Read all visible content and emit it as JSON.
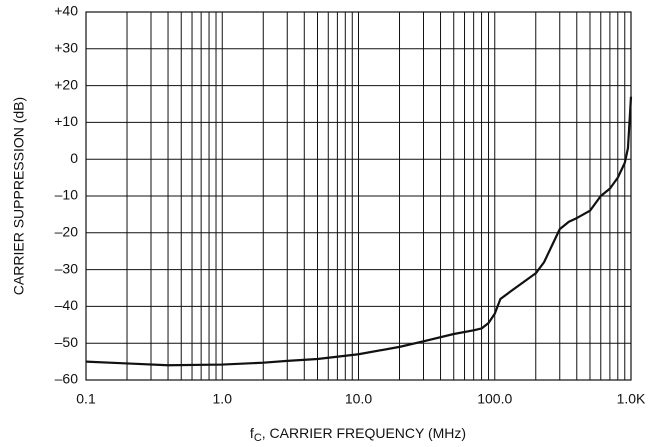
{
  "chart_data": {
    "type": "line",
    "ylabel": "CARRIER SUPPRESSION (dB)",
    "xlabel_parts": [
      "f",
      "C",
      ", CARRIER FREQUENCY (MHz)"
    ],
    "x": [
      0.1,
      0.2,
      0.4,
      1.0,
      2,
      3,
      5,
      10,
      20,
      30,
      50,
      70,
      80,
      90,
      100,
      110,
      130,
      200,
      230,
      300,
      350,
      400,
      500,
      600,
      700,
      800,
      900,
      950,
      1000
    ],
    "series": [
      {
        "color": "#111111",
        "values": [
          -55,
          -55.5,
          -56,
          -55.8,
          -55.3,
          -54.8,
          -54.3,
          -53,
          -51,
          -49.5,
          -47.5,
          -46.5,
          -46,
          -44.5,
          -42,
          -38,
          -36,
          -31,
          -28,
          -19,
          -17,
          -16,
          -14,
          -10,
          -8,
          -5,
          -1,
          3,
          17
        ]
      }
    ],
    "xlog": true,
    "xlim": [
      0.1,
      1000
    ],
    "xticks": [
      0.1,
      {
        "value": 1,
        "label": "1.0"
      },
      {
        "value": 10,
        "label": "10.0"
      },
      {
        "value": 100,
        "label": "100.0"
      },
      {
        "value": 1000,
        "label": "1.0K"
      }
    ],
    "ylim": [
      -60,
      40
    ],
    "yticks": [
      {
        "value": -60,
        "label": "–60"
      },
      {
        "value": -50,
        "label": "–50"
      },
      {
        "value": -40,
        "label": "–40"
      },
      {
        "value": -30,
        "label": "–30"
      },
      {
        "value": -20,
        "label": "–20"
      },
      {
        "value": -10,
        "label": "–10"
      },
      0,
      {
        "value": 10,
        "label": "+10"
      },
      {
        "value": 20,
        "label": "+20"
      },
      {
        "value": 30,
        "label": "+30"
      },
      {
        "value": 40,
        "label": "+40"
      }
    ],
    "grid": true,
    "minor_grid": true
  }
}
